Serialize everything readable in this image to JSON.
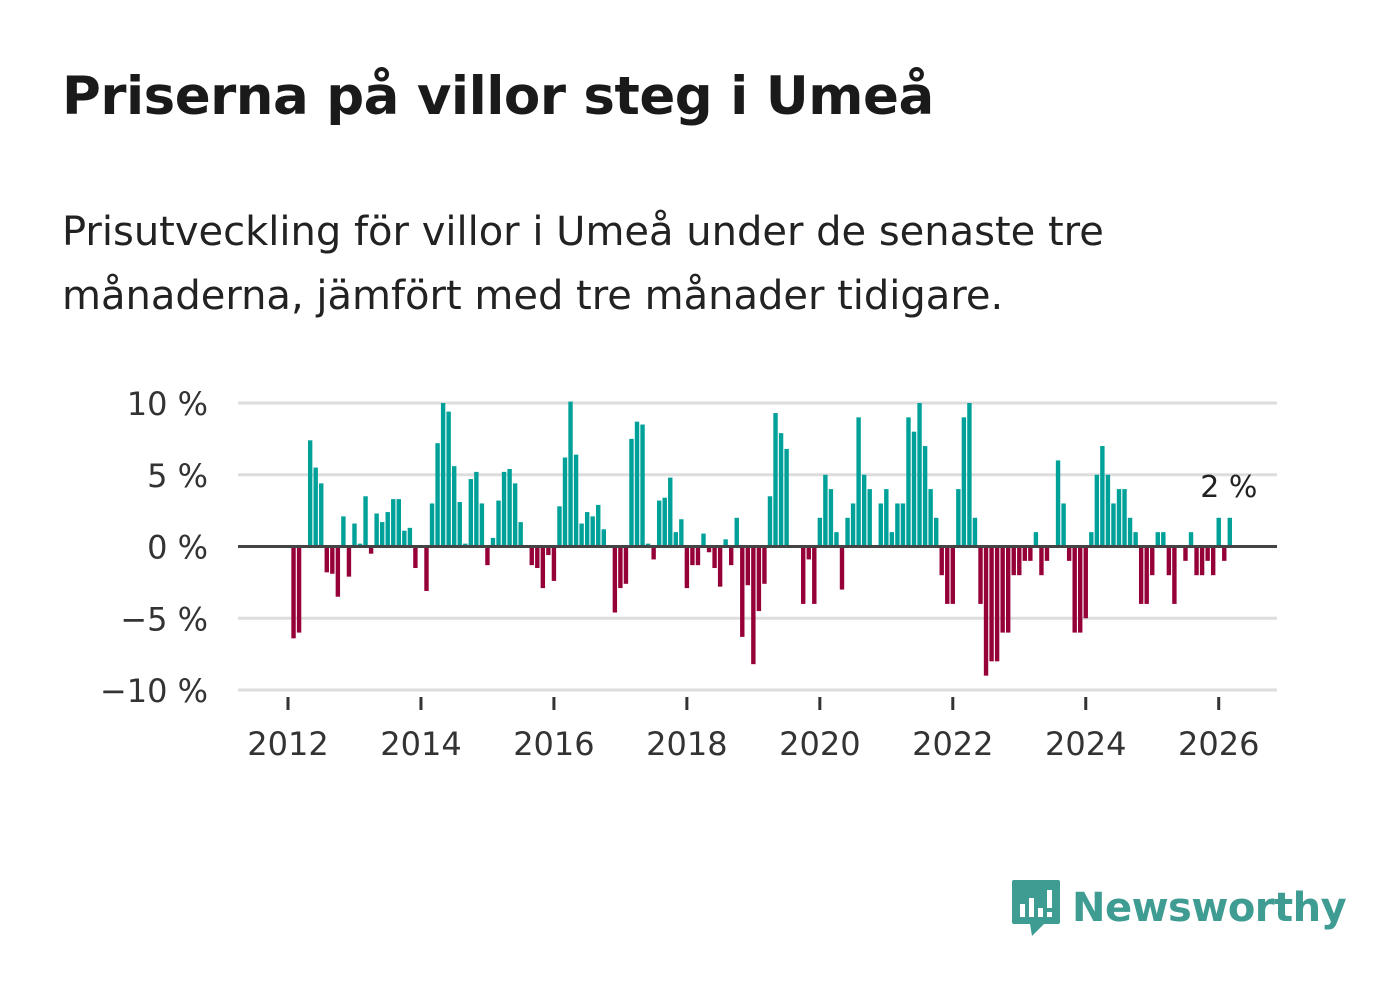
{
  "header": {
    "title": "Priserna på villor steg i Umeå",
    "subtitle": "Prisutveckling för villor i Umeå under de senaste tre månaderna, jämfört med tre månader tidigare."
  },
  "logo": {
    "text": "Newsworthy",
    "icon": "newsworthy-chart-bubble-icon"
  },
  "colors": {
    "positive": "#00a199",
    "negative": "#960038",
    "grid": "#dddddd",
    "zero": "#444444",
    "brand": "#3f9c92"
  },
  "chart_data": {
    "type": "bar",
    "title": "Priserna på villor steg i Umeå",
    "xlabel": "",
    "ylabel": "",
    "start_month": "2012-01",
    "frequency": "monthly",
    "ylim": [
      -10,
      10
    ],
    "yticks": [
      10,
      5,
      0,
      -5,
      -10
    ],
    "ytick_labels": [
      "10 %",
      "5 %",
      "0 %",
      "−5 %",
      "−10 %"
    ],
    "xticks": [
      "2012",
      "2014",
      "2016",
      "2018",
      "2020",
      "2022",
      "2024",
      "2026"
    ],
    "grid": true,
    "annotation": {
      "label": "2 %",
      "target": "last"
    },
    "values": [
      -0.1,
      -6.4,
      -6.0,
      -0.1,
      7.4,
      5.5,
      4.4,
      -1.8,
      -1.9,
      -3.5,
      2.1,
      -2.1,
      1.6,
      0.2,
      3.5,
      -0.5,
      2.3,
      1.7,
      2.4,
      3.3,
      3.3,
      1.1,
      1.3,
      -1.5,
      0,
      -3.1,
      3.0,
      7.2,
      10.0,
      9.4,
      5.6,
      3.1,
      0.2,
      4.7,
      5.2,
      3.0,
      -1.3,
      0.6,
      3.2,
      5.2,
      5.4,
      4.4,
      1.7,
      -0.1,
      -1.3,
      -1.5,
      -2.9,
      -0.6,
      -2.4,
      2.8,
      6.2,
      10.1,
      6.4,
      1.6,
      2.4,
      2.1,
      2.9,
      1.2,
      0,
      -4.6,
      -2.9,
      -2.6,
      7.5,
      8.7,
      8.5,
      0.2,
      -0.9,
      3.2,
      3.4,
      4.8,
      1.0,
      1.9,
      -2.9,
      -1.3,
      -1.3,
      0.9,
      -0.4,
      -1.5,
      -2.8,
      0.5,
      -1.3,
      2.0,
      -6.3,
      -2.7,
      -8.2,
      -4.5,
      -2.6,
      3.5,
      9.3,
      7.9,
      6.8,
      0,
      0,
      -4.0,
      -0.9,
      -4.0,
      2.0,
      5,
      4,
      1,
      -3,
      2,
      3,
      9,
      5,
      4,
      0,
      3,
      4,
      1,
      3,
      3,
      9,
      8,
      10,
      7,
      4,
      2,
      -2,
      -4,
      -4,
      4,
      9,
      10,
      2,
      -4,
      -9,
      -8,
      -8,
      -6,
      -6,
      -2,
      -2,
      -1,
      -1,
      1,
      -2,
      -1,
      0,
      6,
      3,
      -1,
      -6,
      -6,
      -5,
      1,
      5,
      7,
      5,
      3,
      4,
      4,
      2,
      1,
      -4,
      -4,
      -2,
      1,
      1,
      -2,
      -4,
      0,
      -1,
      1,
      -2,
      -2,
      -1,
      -2,
      2,
      -1,
      2
    ]
  }
}
